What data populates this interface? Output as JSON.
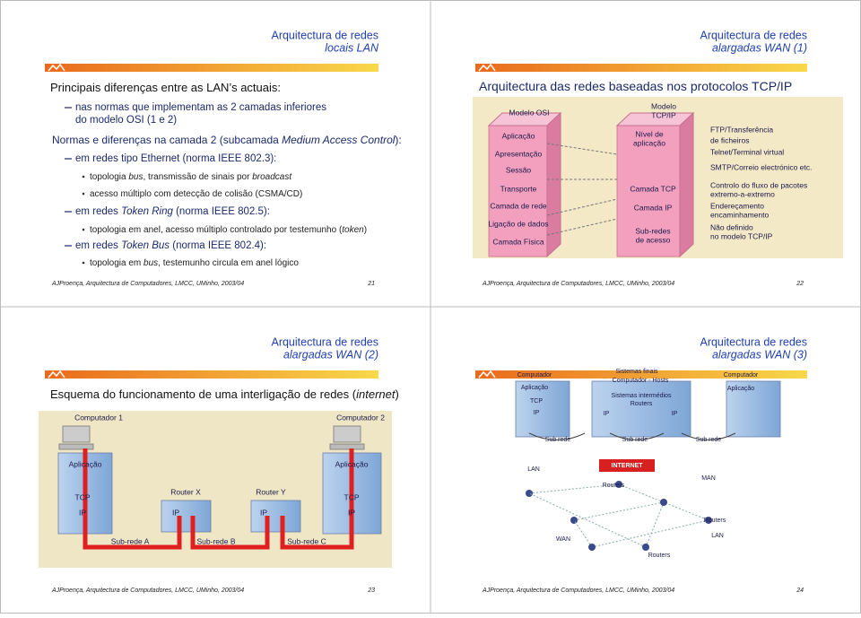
{
  "slides": [
    {
      "title": [
        "Arquitectura de redes",
        "locais LAN"
      ],
      "heading": [
        "Principais diferenças entre as LAN’s actuais:"
      ],
      "body": [
        [
          "nas normas que implementam as 2 camadas inferiores"
        ],
        [
          "do modelo OSI (1 e 2)"
        ],
        [
          "Normas e diferenças na camada 2 (subcamada ",
          "Medium Access Control",
          "):"
        ],
        [
          "em redes tipo Ethernet (norma IEEE 802.3):"
        ],
        [
          "topologia ",
          "bus",
          ", transmissão de sinais por ",
          "broadcast"
        ],
        [
          "acesso múltiplo com detecção de colisão (CSMA/CD)"
        ],
        [
          "em redes ",
          "Token Ring",
          " (norma IEEE 802.5):"
        ],
        [
          "topologia em anel, acesso múltiplo controlado por testemunho (",
          "token",
          ")"
        ],
        [
          "em redes ",
          "Token Bus",
          " (norma IEEE 802.4):"
        ],
        [
          "topologia em ",
          "bus",
          ", testemunho circula em anel lógico"
        ]
      ],
      "footer": {
        "credit": "AJProença, Arquitectura de Computadores, LMCC, UMinho, 2003/04",
        "page": "21"
      }
    },
    {
      "title": [
        "Arquitectura de redes",
        "alargadas WAN (1)"
      ],
      "heading": [
        "Arquitectura das redes baseadas nos protocolos TCP/IP"
      ],
      "diagram": [
        "Modelo OSI",
        "Aplicação",
        "Apresentação",
        "Sessão",
        "Transporte",
        "Camada de rede",
        "Ligação de dados",
        "Camada Física",
        "Modelo",
        "TCP/IP",
        "Nível de",
        "aplicação",
        "Camada TCP",
        "Camada IP",
        "Sub-redes",
        "de acesso",
        "FTP/Transferência",
        "de ficheiros",
        "Telnet/Terminal virtual",
        "SMTP/Correio electrónico etc.",
        "Controlo do fluxo de pacotes",
        "extremo-a-extremo",
        "Endereçamento",
        "encaminhamento",
        "Não definido",
        "no modelo TCP/IP"
      ],
      "footer": {
        "credit": "AJProença, Arquitectura de Computadores, LMCC, UMinho, 2003/04",
        "page": "22"
      }
    },
    {
      "title": [
        "Arquitectura de redes",
        "alargadas WAN (2)"
      ],
      "heading": [
        "Esquema do funcionamento de uma interligação de redes (",
        "internet",
        ")"
      ],
      "diagram": [
        "Computador 1",
        "Computador 2",
        "Aplicação",
        "Aplicação",
        "Router X",
        "Router Y",
        "TCP",
        "TCP",
        "IP",
        "IP",
        "IP",
        "IP",
        "Sub-rede A",
        "Sub-rede B",
        "Sub-rede C"
      ],
      "footer": {
        "credit": "AJProença, Arquitectura de Computadores, LMCC, UMinho, 2003/04",
        "page": "23"
      }
    },
    {
      "title": [
        "Arquitectura de redes",
        "alargadas WAN (3)"
      ],
      "diagram": [
        "Computador",
        "Sistemas finais",
        "Computador - Hosts",
        "Computador",
        "Aplicação",
        "Aplicação",
        "TCP",
        "Sistemas intermédios",
        "Routers",
        "IP",
        "IP",
        "IP",
        "Sub rede",
        "Sub rede",
        "Sub rede",
        "LAN",
        "INTERNET",
        "MAN",
        "Routers",
        "Routers",
        "WAN",
        "LAN",
        "Routers"
      ],
      "footer": {
        "credit": "AJProença, Arquitectura de Computadores, LMCC, UMinho, 2003/04",
        "page": "24"
      }
    }
  ]
}
